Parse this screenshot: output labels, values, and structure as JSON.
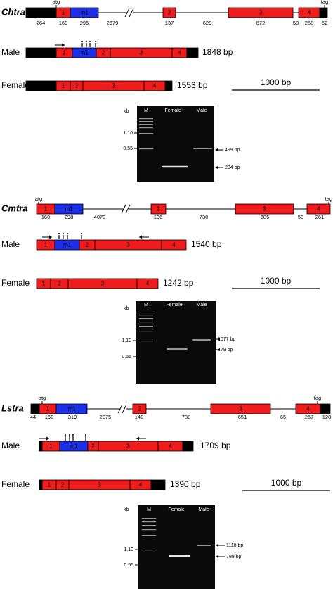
{
  "panels": [
    {
      "gene": "Chtra",
      "start": "atg",
      "stop": "tag",
      "genomic": {
        "exons": [
          "1",
          "m1",
          "2",
          "3",
          "4"
        ],
        "lengths": [
          "264",
          "160",
          "295",
          "2679",
          "137",
          "629",
          "672",
          "58",
          "258",
          "62"
        ]
      },
      "male": {
        "label": "Male",
        "exons": [
          "1",
          "m1",
          "2",
          "3",
          "4"
        ],
        "size": "1848 bp"
      },
      "female": {
        "label": "Female",
        "exons": [
          "1",
          "2",
          "3",
          "4"
        ],
        "size": "1553 bp"
      },
      "scale": "1000 bp",
      "gel": {
        "unit": "kb",
        "lanes": [
          "M",
          "Female",
          "Male"
        ],
        "markers": [
          "1.10",
          "0.55"
        ],
        "bands": [
          "499 bp",
          "204 bp"
        ]
      }
    },
    {
      "gene": "Cmtra",
      "start": "atg",
      "stop": "tag",
      "genomic": {
        "exons": [
          "1",
          "m1",
          "2",
          "3",
          "4"
        ],
        "lengths": [
          "160",
          "298",
          "4073",
          "136",
          "730",
          "685",
          "58",
          "261"
        ]
      },
      "male": {
        "label": "Male",
        "exons": [
          "1",
          "m1",
          "2",
          "3",
          "4"
        ],
        "size": "1540 bp"
      },
      "female": {
        "label": "Female",
        "exons": [
          "1",
          "2",
          "3",
          "4"
        ],
        "size": "1242 bp"
      },
      "scale": "1000 bp",
      "gel": {
        "unit": "kb",
        "lanes": [
          "M",
          "Female",
          "Male"
        ],
        "markers": [
          "1.10",
          "0.55"
        ],
        "bands": [
          "1077 bp",
          "779 bp"
        ]
      }
    },
    {
      "gene": "Lstra",
      "start": "atg",
      "stop": "tag",
      "genomic": {
        "exons": [
          "1",
          "m1",
          "2",
          "3",
          "4"
        ],
        "lengths": [
          "44",
          "160",
          "319",
          "2075",
          "140",
          "738",
          "651",
          "65",
          "267",
          "128"
        ]
      },
      "male": {
        "label": "Male",
        "exons": [
          "1",
          "m1",
          "2",
          "3",
          "4"
        ],
        "size": "1709 bp"
      },
      "female": {
        "label": "Female",
        "exons": [
          "1",
          "2",
          "3",
          "4"
        ],
        "size": "1390 bp"
      },
      "scale": "1000 bp",
      "gel": {
        "unit": "kb",
        "lanes": [
          "M",
          "Female",
          "Male"
        ],
        "markers": [
          "1.10",
          "0.55"
        ],
        "bands": [
          "1118 bp",
          "799 bp"
        ]
      }
    }
  ]
}
